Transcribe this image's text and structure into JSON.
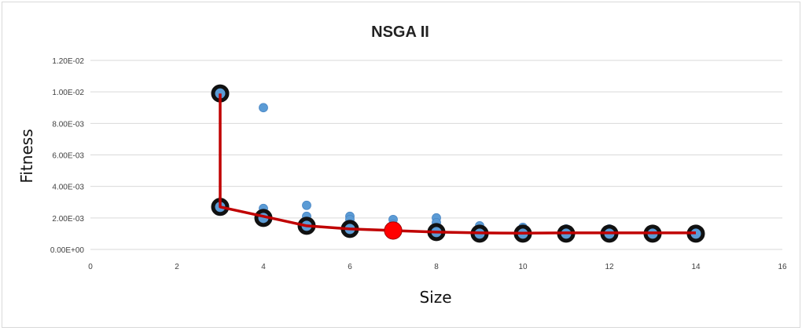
{
  "chart_data": {
    "type": "scatter",
    "title": "NSGA II",
    "xlabel": "Size",
    "ylabel": "Fitness",
    "xlim": [
      0,
      16
    ],
    "ylim": [
      0,
      0.012
    ],
    "x_ticks": [
      0,
      2,
      4,
      6,
      8,
      10,
      12,
      14,
      16
    ],
    "x_tick_labels": [
      "0",
      "2",
      "4",
      "6",
      "8",
      "10",
      "12",
      "14",
      "16"
    ],
    "y_ticks": [
      0,
      0.002,
      0.004,
      0.006,
      0.008,
      0.01,
      0.012
    ],
    "y_tick_labels": [
      "0.00E+00",
      "2.00E-03",
      "4.00E-03",
      "6.00E-03",
      "8.00E-03",
      "1.00E-02",
      "1.20E-02"
    ],
    "grid": "horizontal",
    "series": [
      {
        "name": "",
        "color": "#5b9bd5",
        "points": [
          [
            3,
            0.0099
          ],
          [
            3,
            0.0027
          ],
          [
            3,
            0.0025
          ],
          [
            4,
            0.009
          ],
          [
            4,
            0.0026
          ],
          [
            4,
            0.0023
          ],
          [
            4,
            0.0019
          ],
          [
            5,
            0.0028
          ],
          [
            5,
            0.0021
          ],
          [
            5,
            0.0018
          ],
          [
            5,
            0.0014
          ],
          [
            6,
            0.0021
          ],
          [
            6,
            0.0019
          ],
          [
            6,
            0.0016
          ],
          [
            6,
            0.0013
          ],
          [
            7,
            0.0019
          ],
          [
            7,
            0.0016
          ],
          [
            7,
            0.0013
          ],
          [
            8,
            0.002
          ],
          [
            8,
            0.0017
          ],
          [
            8,
            0.0014
          ],
          [
            8,
            0.0011
          ],
          [
            9,
            0.0015
          ],
          [
            9,
            0.0012
          ],
          [
            9,
            0.001
          ],
          [
            10,
            0.0014
          ],
          [
            10,
            0.0012
          ],
          [
            10,
            0.001
          ],
          [
            11,
            0.0013
          ],
          [
            11,
            0.0011
          ],
          [
            11,
            0.001
          ],
          [
            12,
            0.0013
          ],
          [
            12,
            0.0011
          ],
          [
            12,
            0.001
          ],
          [
            13,
            0.0012
          ],
          [
            13,
            0.0011
          ],
          [
            13,
            0.0009
          ],
          [
            14,
            0.0012
          ],
          [
            14,
            0.0011
          ],
          [
            14,
            0.001
          ]
        ]
      },
      {
        "name": "",
        "color": "#111111",
        "points": [
          [
            3,
            0.0099
          ],
          [
            3,
            0.0027
          ],
          [
            4,
            0.002
          ],
          [
            5,
            0.0015
          ],
          [
            6,
            0.0013
          ],
          [
            7,
            0.0012
          ],
          [
            8,
            0.0011
          ],
          [
            9,
            0.001
          ],
          [
            10,
            0.001
          ],
          [
            11,
            0.001
          ],
          [
            12,
            0.001
          ],
          [
            13,
            0.001
          ],
          [
            14,
            0.001
          ]
        ]
      },
      {
        "name": "",
        "type": "line",
        "color": "#c00000",
        "points": [
          [
            3,
            0.0099
          ],
          [
            3,
            0.0027
          ],
          [
            4,
            0.0021
          ],
          [
            5,
            0.0015
          ],
          [
            6,
            0.0013
          ],
          [
            7,
            0.0012
          ],
          [
            8,
            0.0011
          ],
          [
            9,
            0.00105
          ],
          [
            10,
            0.00103
          ],
          [
            11,
            0.00105
          ],
          [
            12,
            0.00105
          ],
          [
            13,
            0.00105
          ],
          [
            14,
            0.00105
          ]
        ]
      },
      {
        "name": "",
        "color": "#ff0000",
        "points": [
          [
            7,
            0.0012
          ]
        ]
      }
    ]
  }
}
